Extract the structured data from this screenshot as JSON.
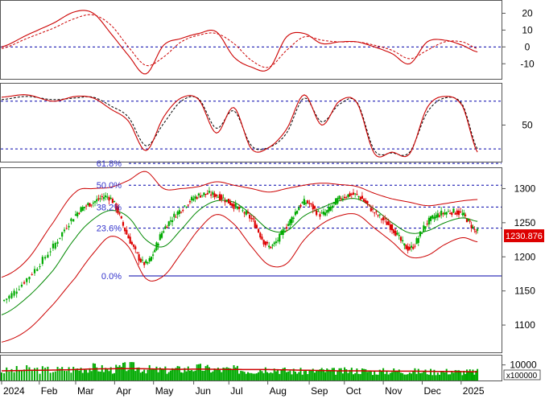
{
  "colors": {
    "osc_line": "#cc0000",
    "signal_line": "#000000",
    "up_candle": "#00aa00",
    "down_candle": "#dd0000",
    "band": "#cc0000",
    "ma": "#008800",
    "ref_line": "#0000aa",
    "fib_text": "#3333cc",
    "last_price_bg": "#dd0000",
    "volume_bar": "#00aa00",
    "volume_ma": "#cc0000"
  },
  "chart_data": [
    {
      "type": "line",
      "name": "oscillator-panel",
      "y_ticks": [
        "20",
        "10",
        "0",
        "-10"
      ],
      "ylim": [
        -18,
        25
      ],
      "ref_lines": [
        0
      ],
      "x": [
        "2024-01-02",
        "2024-01-22",
        "2024-02-12",
        "2024-03-01",
        "2024-03-15",
        "2024-03-29",
        "2024-04-12",
        "2024-04-26",
        "2024-05-10",
        "2024-05-24",
        "2024-06-07",
        "2024-06-21",
        "2024-07-05",
        "2024-07-19",
        "2024-08-02",
        "2024-08-16",
        "2024-08-30",
        "2024-09-13",
        "2024-09-27",
        "2024-10-11",
        "2024-10-25",
        "2024-11-08",
        "2024-11-22",
        "2024-12-06",
        "2024-12-20",
        "2025-01-03",
        "2025-01-15"
      ],
      "series": [
        {
          "values": [
            0,
            7,
            14,
            21,
            20,
            8,
            -5,
            -16,
            1,
            5,
            8,
            9,
            -6,
            -12,
            -13,
            6,
            8,
            2,
            3,
            3,
            0,
            -4,
            -10,
            3,
            4,
            1,
            -3
          ]
        },
        {
          "values": [
            -1,
            5,
            11,
            17,
            19,
            13,
            0,
            -11,
            -6,
            3,
            7,
            8,
            2,
            -8,
            -12,
            -2,
            6,
            4,
            3,
            3,
            1,
            -2,
            -7,
            -2,
            3,
            3,
            -1
          ]
        }
      ]
    },
    {
      "type": "line",
      "name": "stochastic-panel",
      "y_ticks": [
        "50"
      ],
      "ylim": [
        5,
        100
      ],
      "ref_lines": [
        80,
        20
      ],
      "x": [
        "2024-01-02",
        "2024-01-22",
        "2024-02-12",
        "2024-03-01",
        "2024-03-15",
        "2024-03-29",
        "2024-04-12",
        "2024-04-26",
        "2024-05-10",
        "2024-05-24",
        "2024-06-07",
        "2024-06-21",
        "2024-07-05",
        "2024-07-19",
        "2024-08-02",
        "2024-08-16",
        "2024-08-30",
        "2024-09-13",
        "2024-09-27",
        "2024-10-11",
        "2024-10-25",
        "2024-11-08",
        "2024-11-22",
        "2024-12-06",
        "2024-12-20",
        "2025-01-03",
        "2025-01-15"
      ],
      "series": [
        {
          "values": [
            85,
            88,
            80,
            86,
            84,
            70,
            55,
            18,
            60,
            84,
            82,
            40,
            72,
            20,
            22,
            45,
            88,
            50,
            80,
            78,
            14,
            16,
            14,
            72,
            86,
            74,
            16
          ]
        },
        {
          "values": [
            82,
            86,
            82,
            84,
            85,
            74,
            60,
            24,
            52,
            80,
            83,
            46,
            68,
            24,
            22,
            40,
            84,
            54,
            76,
            79,
            18,
            15,
            16,
            66,
            84,
            76,
            20
          ]
        }
      ]
    },
    {
      "type": "candlestick",
      "name": "price-panel",
      "y_ticks": [
        "1300",
        "1250",
        "1200",
        "1150",
        "1100"
      ],
      "ylim": [
        1060,
        1330
      ],
      "x_ticks": [
        "2024",
        "Feb",
        "Mar",
        "Apr",
        "May",
        "Jun",
        "Jul",
        "Aug",
        "Sep",
        "Oct",
        "Nov",
        "Dec",
        "2025"
      ],
      "last_price": "1230.876",
      "fibonacci": [
        {
          "label": "61.8%",
          "value": 1337
        },
        {
          "label": "50.0%",
          "value": 1305
        },
        {
          "label": "38.2%",
          "value": 1273
        },
        {
          "label": "23.6%",
          "value": 1242
        },
        {
          "label": "0.0%",
          "value": 1172
        }
      ],
      "x": [
        "2024-01-02",
        "2024-01-22",
        "2024-02-12",
        "2024-03-01",
        "2024-03-15",
        "2024-03-29",
        "2024-04-12",
        "2024-04-26",
        "2024-05-10",
        "2024-05-24",
        "2024-06-07",
        "2024-06-21",
        "2024-07-05",
        "2024-07-19",
        "2024-08-02",
        "2024-08-16",
        "2024-08-30",
        "2024-09-13",
        "2024-09-27",
        "2024-10-11",
        "2024-10-25",
        "2024-11-08",
        "2024-11-22",
        "2024-12-06",
        "2024-12-20",
        "2025-01-03",
        "2025-01-15"
      ],
      "close": [
        1135,
        1168,
        1215,
        1262,
        1280,
        1285,
        1228,
        1190,
        1240,
        1270,
        1290,
        1290,
        1275,
        1255,
        1215,
        1245,
        1280,
        1262,
        1285,
        1290,
        1265,
        1242,
        1212,
        1250,
        1265,
        1262,
        1236
      ],
      "upper_band": [
        1170,
        1195,
        1250,
        1295,
        1300,
        1302,
        1312,
        1325,
        1300,
        1300,
        1303,
        1310,
        1305,
        1300,
        1295,
        1300,
        1305,
        1308,
        1306,
        1303,
        1293,
        1285,
        1280,
        1275,
        1278,
        1282,
        1284
      ],
      "lower_band": [
        1075,
        1092,
        1130,
        1170,
        1205,
        1230,
        1215,
        1168,
        1172,
        1205,
        1240,
        1262,
        1248,
        1215,
        1188,
        1190,
        1225,
        1248,
        1260,
        1262,
        1242,
        1222,
        1200,
        1202,
        1218,
        1228,
        1222
      ],
      "moving_average": [
        1115,
        1140,
        1180,
        1228,
        1255,
        1268,
        1258,
        1225,
        1215,
        1240,
        1268,
        1282,
        1280,
        1262,
        1240,
        1238,
        1260,
        1272,
        1282,
        1285,
        1270,
        1250,
        1235,
        1238,
        1250,
        1257,
        1252
      ]
    },
    {
      "type": "bar",
      "name": "volume-panel",
      "y_ticks": [
        "10000"
      ],
      "multiplier_label": "x100000",
      "ylim": [
        0,
        16000
      ],
      "x": [
        "2024-01-02",
        "2024-01-22",
        "2024-02-12",
        "2024-03-01",
        "2024-03-15",
        "2024-03-29",
        "2024-04-12",
        "2024-04-26",
        "2024-05-10",
        "2024-05-24",
        "2024-06-07",
        "2024-06-21",
        "2024-07-05",
        "2024-07-19",
        "2024-08-02",
        "2024-08-16",
        "2024-08-30",
        "2024-09-13",
        "2024-09-27",
        "2024-10-11",
        "2024-10-25",
        "2024-11-08",
        "2024-11-22",
        "2024-12-06",
        "2024-12-20",
        "2025-01-03",
        "2025-01-15"
      ],
      "values": [
        6000,
        7200,
        6800,
        7500,
        8200,
        7000,
        8800,
        7400,
        6600,
        7200,
        8000,
        6900,
        7100,
        6400,
        7800,
        6200,
        5800,
        6300,
        5900,
        6500,
        5700,
        6100,
        5900,
        5600,
        5800,
        5500,
        5400
      ],
      "moving_average": [
        6200,
        6500,
        6700,
        7000,
        7400,
        7500,
        7600,
        7500,
        7300,
        7200,
        7300,
        7200,
        7100,
        7000,
        7000,
        6800,
        6600,
        6400,
        6200,
        6200,
        6100,
        6000,
        6000,
        5900,
        5800,
        5700,
        5600
      ]
    }
  ]
}
